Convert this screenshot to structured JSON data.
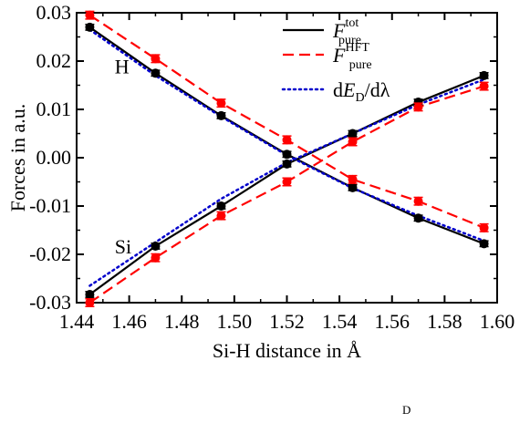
{
  "chart_data": {
    "type": "line",
    "xlabel": "Si-H distance in Å",
    "ylabel": "Forces in a.u.",
    "xlim": [
      1.44,
      1.6
    ],
    "ylim": [
      -0.03,
      0.03
    ],
    "x_ticks": [
      "1.44",
      "1.46",
      "1.48",
      "1.50",
      "1.52",
      "1.54",
      "1.56",
      "1.58",
      "1.60"
    ],
    "y_ticks": [
      "-0.03",
      "-0.02",
      "-0.01",
      "0.00",
      "0.01",
      "0.02",
      "0.03"
    ],
    "grid": false,
    "legend_position": "top-right",
    "legend": [
      {
        "main": "F",
        "sup": "tot",
        "sub": "pure",
        "color": "#000000",
        "style": "solid"
      },
      {
        "main": "F",
        "sup": "HFT",
        "sub": "pure",
        "color": "#ff0000",
        "style": "dashed"
      },
      {
        "pre": "dE",
        "sub": "D",
        "post": "/dλ",
        "color": "#0000cc",
        "style": "dotted"
      }
    ],
    "annotations": [
      {
        "text": "H",
        "x": 1.4545,
        "y": 0.0175
      },
      {
        "text": "Si",
        "x": 1.4545,
        "y": -0.0198
      }
    ],
    "groups": [
      {
        "atom": "H",
        "series": [
          {
            "key": "tot",
            "color": "#000000",
            "style": "solid",
            "x": [
              1.445,
              1.47,
              1.495,
              1.52,
              1.545,
              1.57,
              1.595
            ],
            "y": [
              0.027,
              0.0175,
              0.0087,
              0.0007,
              -0.0062,
              -0.0125,
              -0.0178
            ],
            "err": [
              0.0006,
              0.0006,
              0.0006,
              0.0006,
              0.0006,
              0.0006,
              0.0006
            ]
          },
          {
            "key": "hft",
            "color": "#ff0000",
            "style": "dashed",
            "x": [
              1.445,
              1.47,
              1.495,
              1.52,
              1.545,
              1.57,
              1.595
            ],
            "y": [
              0.0295,
              0.0205,
              0.0113,
              0.0037,
              -0.0045,
              -0.009,
              -0.0145
            ],
            "err": [
              0.0008,
              0.0008,
              0.0008,
              0.0008,
              0.0008,
              0.0008,
              0.0008
            ]
          },
          {
            "key": "ded",
            "color": "#0000cc",
            "style": "dotted",
            "x": [
              1.445,
              1.47,
              1.495,
              1.52,
              1.545,
              1.57,
              1.595
            ],
            "y": [
              0.0265,
              0.017,
              0.0085,
              0.0005,
              -0.0063,
              -0.012,
              -0.0172
            ]
          }
        ]
      },
      {
        "atom": "Si",
        "series": [
          {
            "key": "tot",
            "color": "#000000",
            "style": "solid",
            "x": [
              1.445,
              1.47,
              1.495,
              1.52,
              1.545,
              1.57,
              1.595
            ],
            "y": [
              -0.0283,
              -0.0183,
              -0.01,
              -0.0013,
              0.005,
              0.0115,
              0.017
            ],
            "err": [
              0.0006,
              0.0006,
              0.0006,
              0.0006,
              0.0006,
              0.0006,
              0.0006
            ]
          },
          {
            "key": "hft",
            "color": "#ff0000",
            "style": "dashed",
            "x": [
              1.445,
              1.47,
              1.495,
              1.52,
              1.545,
              1.57,
              1.595
            ],
            "y": [
              -0.03,
              -0.0207,
              -0.012,
              -0.005,
              0.0033,
              0.0105,
              0.0148
            ],
            "err": [
              0.0008,
              0.0008,
              0.0008,
              0.0008,
              0.0008,
              0.0008,
              0.0008
            ]
          },
          {
            "key": "ded",
            "color": "#0000cc",
            "style": "dotted",
            "x": [
              1.445,
              1.47,
              1.495,
              1.52,
              1.545,
              1.57,
              1.595
            ],
            "y": [
              -0.0265,
              -0.0175,
              -0.0085,
              -0.001,
              0.005,
              0.011,
              0.0162
            ]
          }
        ]
      }
    ]
  },
  "stray_text": "D"
}
